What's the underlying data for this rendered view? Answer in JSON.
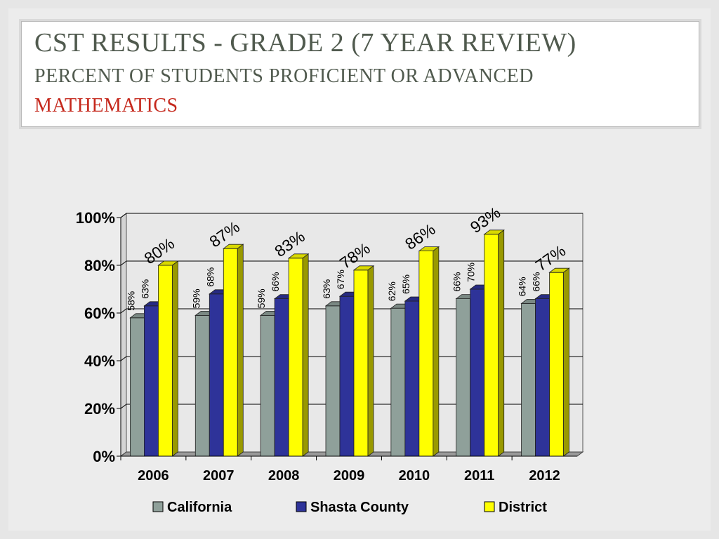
{
  "title": {
    "line1": "CST RESULTS - GRADE 2 (7 YEAR REVIEW)",
    "line2": "PERCENT OF STUDENTS PROFICIENT OR ADVANCED",
    "line3": "MATHEMATICS"
  },
  "chart_data": {
    "type": "bar",
    "categories": [
      "2006",
      "2007",
      "2008",
      "2009",
      "2010",
      "2011",
      "2012"
    ],
    "series": [
      {
        "name": "California",
        "color": "#8fa09a",
        "values": [
          58,
          59,
          59,
          63,
          62,
          66,
          64
        ],
        "labels": [
          "58%",
          "59%",
          "59%",
          "63%",
          "62%",
          "66%",
          "64%"
        ]
      },
      {
        "name": "Shasta County",
        "color": "#2e3399",
        "values": [
          63,
          68,
          66,
          67,
          65,
          70,
          66
        ],
        "labels": [
          "63%",
          "68%",
          "66%",
          "67%",
          "65%",
          "70%",
          "66%"
        ]
      },
      {
        "name": "District",
        "color": "#ffff00",
        "values": [
          80,
          87,
          83,
          78,
          86,
          93,
          77
        ],
        "labels": [
          "80%",
          "87%",
          "83%",
          "78%",
          "86%",
          "93%",
          "77%"
        ]
      }
    ],
    "yticks": [
      "0%",
      "20%",
      "40%",
      "60%",
      "80%",
      "100%"
    ],
    "ylim": [
      0,
      100
    ],
    "grid": true,
    "legend_position": "bottom"
  }
}
